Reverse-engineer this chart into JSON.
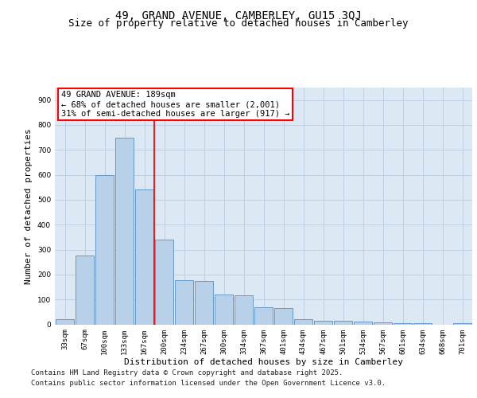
{
  "title_line1": "49, GRAND AVENUE, CAMBERLEY, GU15 3QJ",
  "title_line2": "Size of property relative to detached houses in Camberley",
  "xlabel": "Distribution of detached houses by size in Camberley",
  "ylabel": "Number of detached properties",
  "categories": [
    "33sqm",
    "67sqm",
    "100sqm",
    "133sqm",
    "167sqm",
    "200sqm",
    "234sqm",
    "267sqm",
    "300sqm",
    "334sqm",
    "367sqm",
    "401sqm",
    "434sqm",
    "467sqm",
    "501sqm",
    "534sqm",
    "567sqm",
    "601sqm",
    "634sqm",
    "668sqm",
    "701sqm"
  ],
  "values": [
    22,
    275,
    600,
    750,
    540,
    340,
    178,
    175,
    120,
    118,
    68,
    65,
    22,
    14,
    13,
    10,
    9,
    5,
    4,
    0,
    5
  ],
  "bar_color": "#b8d0e8",
  "bar_edge_color": "#6699cc",
  "vline_color": "red",
  "annotation_text": "49 GRAND AVENUE: 189sqm\n← 68% of detached houses are smaller (2,001)\n31% of semi-detached houses are larger (917) →",
  "annotation_box_color": "white",
  "annotation_box_edge_color": "red",
  "ylim": [
    0,
    950
  ],
  "yticks": [
    0,
    100,
    200,
    300,
    400,
    500,
    600,
    700,
    800,
    900
  ],
  "grid_color": "#c0d0e4",
  "background_color": "#dce8f4",
  "footer_line1": "Contains HM Land Registry data © Crown copyright and database right 2025.",
  "footer_line2": "Contains public sector information licensed under the Open Government Licence v3.0.",
  "title_fontsize": 10,
  "subtitle_fontsize": 9,
  "ylabel_fontsize": 8,
  "xlabel_fontsize": 8,
  "tick_fontsize": 6.5,
  "footer_fontsize": 6.5,
  "annot_fontsize": 7.5
}
